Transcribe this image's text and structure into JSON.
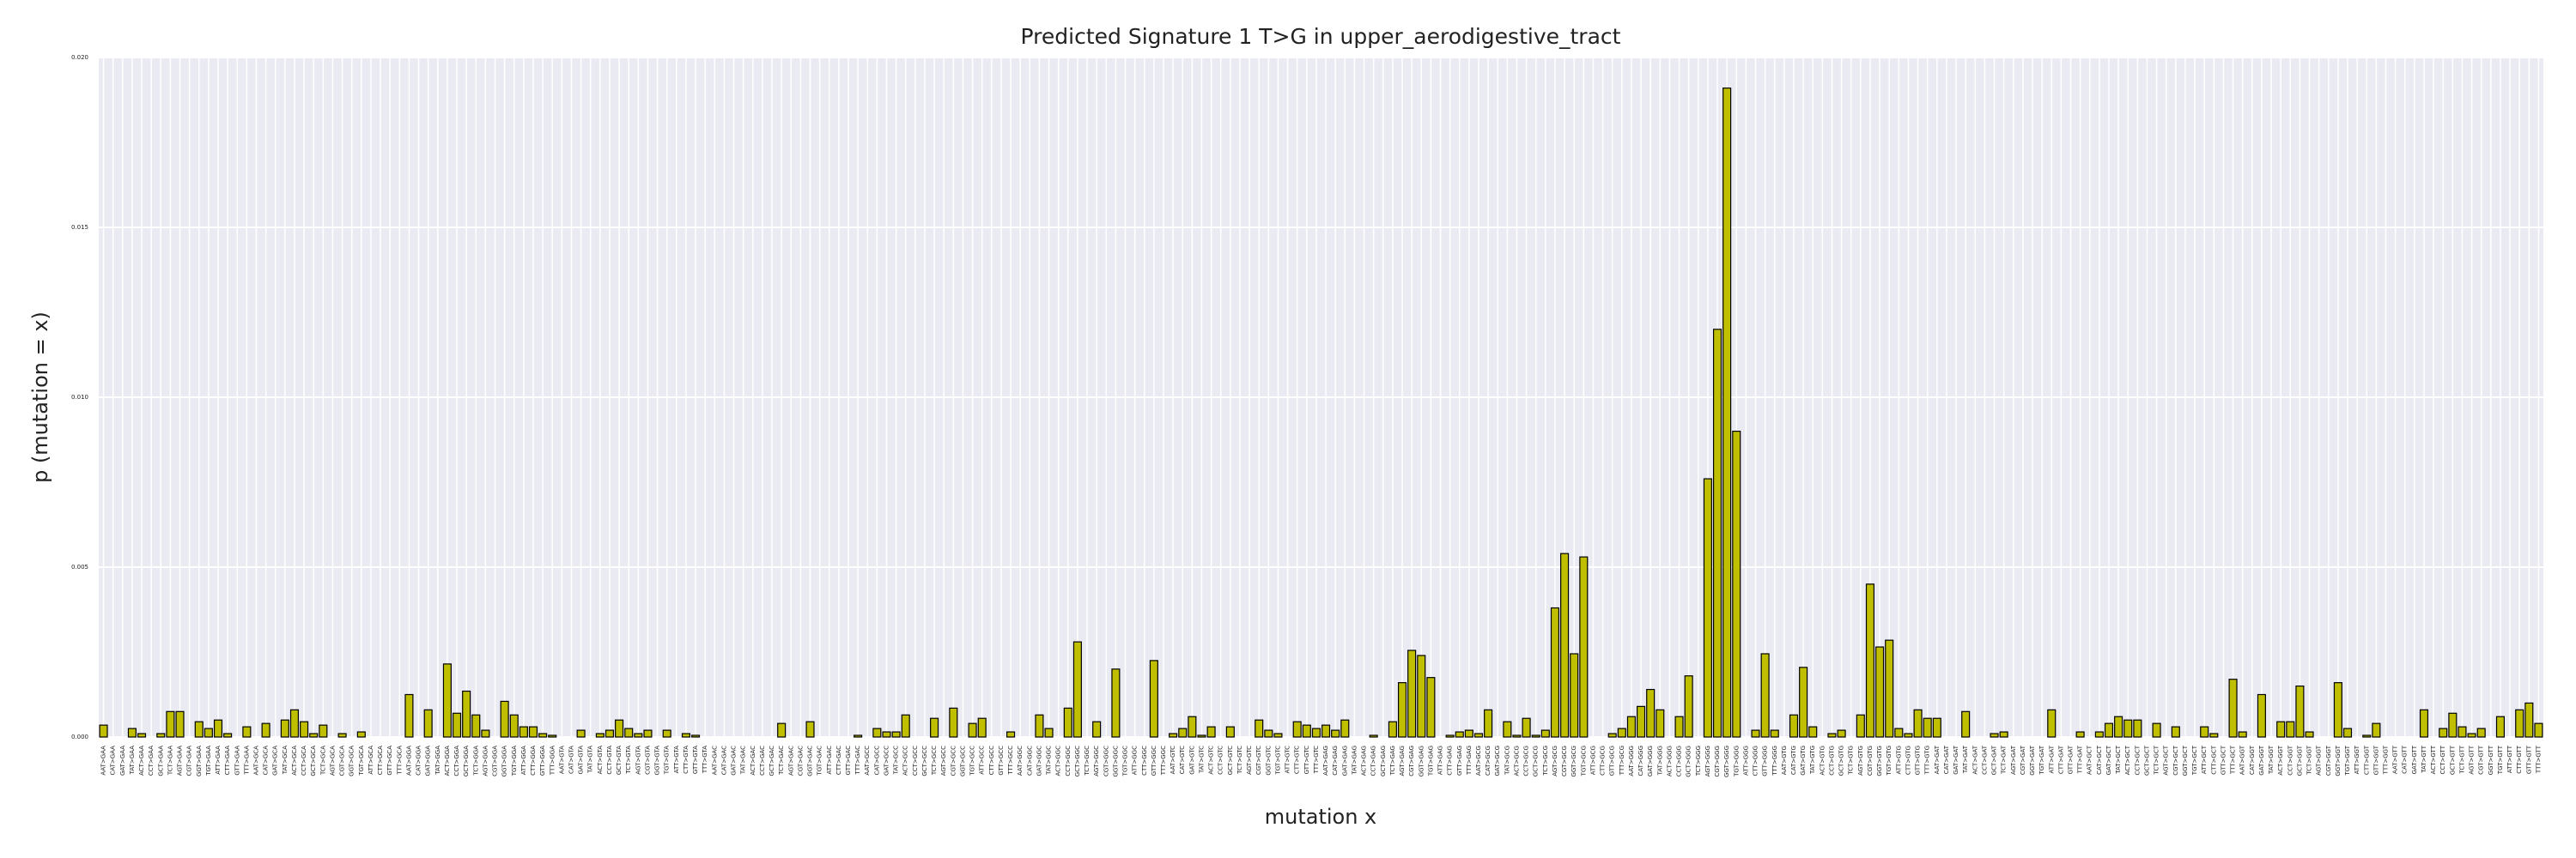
{
  "chart_data": {
    "type": "bar",
    "title": "Predicted Signature 1 T>G in upper_aerodigestive_tract",
    "xlabel": "mutation x",
    "ylabel": "p (mutation = x)",
    "color": "#bfbf00",
    "edgecolor": "#000000",
    "grid": true,
    "ylim": [
      0,
      0.02
    ],
    "yticks": [
      {
        "value": 0,
        "label": "0.000"
      },
      {
        "value": 0.005,
        "label": "0.005"
      },
      {
        "value": 0.01,
        "label": "0.010"
      },
      {
        "value": 0.015,
        "label": "0.015"
      },
      {
        "value": 0.02,
        "label": "0.020"
      }
    ],
    "categories": [
      "AAT>GAA",
      "CAT>GAA",
      "GAT>GAA",
      "TAT>GAA",
      "ACT>GAA",
      "CCT>GAA",
      "GCT>GAA",
      "TCT>GAA",
      "AGT>GAA",
      "CGT>GAA",
      "GGT>GAA",
      "TGT>GAA",
      "ATT>GAA",
      "CTT>GAA",
      "GTT>GAA",
      "TTT>GAA",
      "AAT>GCA",
      "CAT>GCA",
      "GAT>GCA",
      "TAT>GCA",
      "ACT>GCA",
      "CCT>GCA",
      "GCT>GCA",
      "TCT>GCA",
      "AGT>GCA",
      "CGT>GCA",
      "GGT>GCA",
      "TGT>GCA",
      "ATT>GCA",
      "CTT>GCA",
      "GTT>GCA",
      "TTT>GCA",
      "AAT>GGA",
      "CAT>GGA",
      "GAT>GGA",
      "TAT>GGA",
      "ACT>GGA",
      "CCT>GGA",
      "GCT>GGA",
      "TCT>GGA",
      "AGT>GGA",
      "CGT>GGA",
      "GGT>GGA",
      "TGT>GGA",
      "ATT>GGA",
      "CTT>GGA",
      "GTT>GGA",
      "TTT>GGA",
      "AAT>GTA",
      "CAT>GTA",
      "GAT>GTA",
      "TAT>GTA",
      "ACT>GTA",
      "CCT>GTA",
      "GCT>GTA",
      "TCT>GTA",
      "AGT>GTA",
      "CGT>GTA",
      "GGT>GTA",
      "TGT>GTA",
      "ATT>GTA",
      "CTT>GTA",
      "GTT>GTA",
      "TTT>GTA",
      "AAT>GAC",
      "CAT>GAC",
      "GAT>GAC",
      "TAT>GAC",
      "ACT>GAC",
      "CCT>GAC",
      "GCT>GAC",
      "TCT>GAC",
      "AGT>GAC",
      "CGT>GAC",
      "GGT>GAC",
      "TGT>GAC",
      "ATT>GAC",
      "CTT>GAC",
      "GTT>GAC",
      "TTT>GAC",
      "AAT>GCC",
      "CAT>GCC",
      "GAT>GCC",
      "TAT>GCC",
      "ACT>GCC",
      "CCT>GCC",
      "GCT>GCC",
      "TCT>GCC",
      "AGT>GCC",
      "CGT>GCC",
      "GGT>GCC",
      "TGT>GCC",
      "ATT>GCC",
      "CTT>GCC",
      "GTT>GCC",
      "TTT>GCC",
      "AAT>GGC",
      "CAT>GGC",
      "GAT>GGC",
      "TAT>GGC",
      "ACT>GGC",
      "CCT>GGC",
      "GCT>GGC",
      "TCT>GGC",
      "AGT>GGC",
      "CGT>GGC",
      "GGT>GGC",
      "TGT>GGC",
      "ATT>GGC",
      "CTT>GGC",
      "GTT>GGC",
      "TTT>GGC",
      "AAT>GTC",
      "CAT>GTC",
      "GAT>GTC",
      "TAT>GTC",
      "ACT>GTC",
      "CCT>GTC",
      "GCT>GTC",
      "TCT>GTC",
      "AGT>GTC",
      "CGT>GTC",
      "GGT>GTC",
      "TGT>GTC",
      "ATT>GTC",
      "CTT>GTC",
      "GTT>GTC",
      "TTT>GTC",
      "AAT>GAG",
      "CAT>GAG",
      "GAT>GAG",
      "TAT>GAG",
      "ACT>GAG",
      "CCT>GAG",
      "GCT>GAG",
      "TCT>GAG",
      "AGT>GAG",
      "CGT>GAG",
      "GGT>GAG",
      "TGT>GAG",
      "ATT>GAG",
      "CTT>GAG",
      "GTT>GAG",
      "TTT>GAG",
      "AAT>GCG",
      "CAT>GCG",
      "GAT>GCG",
      "TAT>GCG",
      "ACT>GCG",
      "CCT>GCG",
      "GCT>GCG",
      "TCT>GCG",
      "AGT>GCG",
      "CGT>GCG",
      "GGT>GCG",
      "TGT>GCG",
      "ATT>GCG",
      "CTT>GCG",
      "GTT>GCG",
      "TTT>GCG",
      "AAT>GGG",
      "CAT>GGG",
      "GAT>GGG",
      "TAT>GGG",
      "ACT>GGG",
      "CCT>GGG",
      "GCT>GGG",
      "TCT>GGG",
      "AGT>GGG",
      "CGT>GGG",
      "GGT>GGG",
      "TGT>GGG",
      "ATT>GGG",
      "CTT>GGG",
      "GTT>GGG",
      "TTT>GGG",
      "AAT>GTG",
      "CAT>GTG",
      "GAT>GTG",
      "TAT>GTG",
      "ACT>GTG",
      "CCT>GTG",
      "GCT>GTG",
      "TCT>GTG",
      "AGT>GTG",
      "CGT>GTG",
      "GGT>GTG",
      "TGT>GTG",
      "ATT>GTG",
      "CTT>GTG",
      "GTT>GTG",
      "TTT>GTG",
      "AAT>GAT",
      "CAT>GAT",
      "GAT>GAT",
      "TAT>GAT",
      "ACT>GAT",
      "CCT>GAT",
      "GCT>GAT",
      "TCT>GAT",
      "AGT>GAT",
      "CGT>GAT",
      "GGT>GAT",
      "TGT>GAT",
      "ATT>GAT",
      "CTT>GAT",
      "GTT>GAT",
      "TTT>GAT",
      "AAT>GCT",
      "CAT>GCT",
      "GAT>GCT",
      "TAT>GCT",
      "ACT>GCT",
      "CCT>GCT",
      "GCT>GCT",
      "TCT>GCT",
      "AGT>GCT",
      "CGT>GCT",
      "GGT>GCT",
      "TGT>GCT",
      "ATT>GCT",
      "CTT>GCT",
      "GTT>GCT",
      "TTT>GCT",
      "AAT>GGT",
      "CAT>GGT",
      "GAT>GGT",
      "TAT>GGT",
      "ACT>GGT",
      "CCT>GGT",
      "GCT>GGT",
      "TCT>GGT",
      "AGT>GGT",
      "CGT>GGT",
      "GGT>GGT",
      "TGT>GGT",
      "ATT>GGT",
      "CTT>GGT",
      "GTT>GGT",
      "TTT>GGT",
      "AAT>GTT",
      "CAT>GTT",
      "GAT>GTT",
      "TAT>GTT",
      "ACT>GTT",
      "CCT>GTT",
      "GCT>GTT",
      "TCT>GTT",
      "AGT>GTT",
      "CGT>GTT",
      "GGT>GTT",
      "TGT>GTT",
      "ATT>GTT",
      "CTT>GTT",
      "GTT>GTT",
      "TTT>GTT"
    ],
    "values": [
      0.00035,
      0,
      0,
      0.00025,
      0.0001,
      0,
      0.0001,
      0.00075,
      0.00075,
      0,
      0.00045,
      0.00025,
      0.0005,
      0.0001,
      0,
      0.0003,
      0,
      0.0004,
      0,
      0.0005,
      0.0008,
      0.00045,
      0.0001,
      0.00035,
      0,
      0.0001,
      0,
      0.00015,
      0,
      0,
      0,
      0,
      0.00125,
      0,
      0.0008,
      0,
      0.00215,
      0.0007,
      0.00135,
      0.00065,
      0.0002,
      0,
      0.00105,
      0.00065,
      0.0003,
      0.0003,
      0.0001,
      5e-05,
      0,
      0,
      0.0002,
      0,
      0.0001,
      0.0002,
      0.0005,
      0.00025,
      0.0001,
      0.0002,
      0,
      0.0002,
      0,
      0.0001,
      5e-05,
      0,
      0,
      0,
      0,
      0,
      0,
      0,
      0,
      0.0004,
      0,
      0,
      0.00045,
      0,
      0,
      0,
      0,
      5e-05,
      0,
      0.00025,
      0.00015,
      0.00015,
      0.00065,
      0,
      0,
      0.00055,
      0,
      0.00085,
      0,
      0.0004,
      0.00055,
      0,
      0,
      0.00015,
      0,
      0,
      0.00065,
      0.00025,
      0,
      0.00085,
      0.0028,
      0,
      0.00045,
      0,
      0.002,
      0,
      0,
      0,
      0.00225,
      0,
      0.0001,
      0.00025,
      0.0006,
      5e-05,
      0.0003,
      0,
      0.0003,
      0,
      0,
      0.0005,
      0.0002,
      0.0001,
      0,
      0.00045,
      0.00035,
      0.00025,
      0.00035,
      0.0002,
      0.0005,
      0,
      0,
      5e-05,
      0,
      0.00045,
      0.0016,
      0.00255,
      0.0024,
      0.00175,
      0,
      5e-05,
      0.00015,
      0.0002,
      0.0001,
      0.0008,
      0,
      0.00045,
      5e-05,
      0.00055,
      5e-05,
      0.0002,
      0.0038,
      0.0054,
      0.00245,
      0.0053,
      0,
      0,
      0.0001,
      0.00025,
      0.0006,
      0.0009,
      0.0014,
      0.0008,
      0,
      0.0006,
      0.0018,
      0,
      0.0076,
      0.012,
      0.0191,
      0.009,
      0,
      0.0002,
      0.00245,
      0.0002,
      0,
      0.00065,
      0.00205,
      0.0003,
      0,
      0.0001,
      0.0002,
      0,
      0.00065,
      0.0045,
      0.00265,
      0.00285,
      0.00025,
      0.0001,
      0.0008,
      0.00055,
      0.00055,
      0,
      0,
      0.00075,
      0,
      0,
      0.0001,
      0.00015,
      0,
      0,
      0,
      0,
      0.0008,
      0,
      0,
      0.00015,
      0,
      0.00015,
      0.0004,
      0.0006,
      0.0005,
      0.0005,
      0,
      0.0004,
      0,
      0.0003,
      0,
      0,
      0.0003,
      0.0001,
      0,
      0.0017,
      0.00015,
      0,
      0.00125,
      0,
      0.00045,
      0.00045,
      0.0015,
      0.00015,
      0,
      0,
      0.0016,
      0.00025,
      0,
      5e-05,
      0.0004,
      0,
      0,
      0,
      0,
      0.0008,
      0,
      0.00025,
      0.0007,
      0.0003,
      0.0001,
      0.00025,
      0,
      0.0006,
      0,
      0.0008,
      0.001,
      0.0004
    ]
  }
}
